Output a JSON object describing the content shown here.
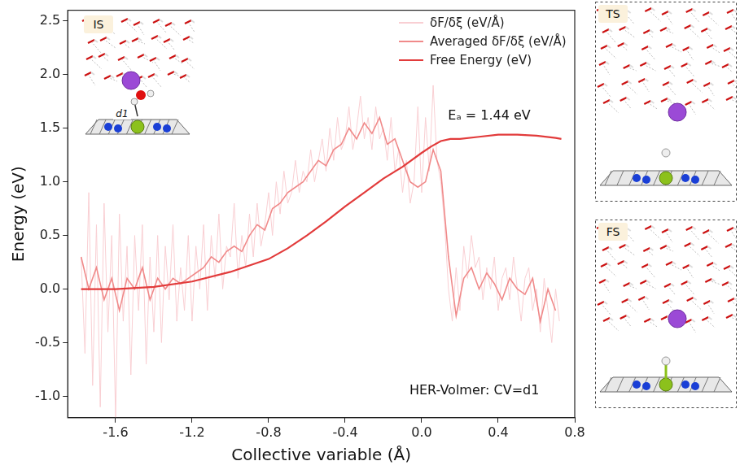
{
  "chart_data": {
    "type": "line",
    "x_label": "Collective variable (Å)",
    "y_label": "Energy (eV)",
    "xlim": [
      -1.85,
      0.8
    ],
    "xticks": [
      -1.6,
      -1.2,
      -0.8,
      -0.4,
      {
        "value": 0,
        "label": "0.0"
      },
      0.4,
      0.8
    ],
    "ylim": [
      -1.2,
      2.6
    ],
    "yticks": [
      {
        "value": -1,
        "label": "-1.0"
      },
      -0.5,
      {
        "value": 0,
        "label": "0.0"
      },
      0.5,
      {
        "value": 1,
        "label": "1.0"
      },
      1.5,
      {
        "value": 2,
        "label": "2.0"
      },
      2.5
    ],
    "grid": false,
    "legend": "upper right",
    "annotations": [
      "Eₐ = 1.44 eV",
      "HER-Volmer: CV=d1"
    ],
    "series": [
      {
        "name": "δF/δξ (eV/Å)",
        "color": "#f9cfd3",
        "x": [
          -1.78,
          -1.76,
          -1.74,
          -1.72,
          -1.7,
          -1.68,
          -1.66,
          -1.64,
          -1.62,
          -1.6,
          -1.58,
          -1.56,
          -1.54,
          -1.52,
          -1.5,
          -1.48,
          -1.46,
          -1.44,
          -1.42,
          -1.4,
          -1.38,
          -1.36,
          -1.34,
          -1.32,
          -1.3,
          -1.28,
          -1.26,
          -1.24,
          -1.22,
          -1.2,
          -1.18,
          -1.16,
          -1.14,
          -1.12,
          -1.1,
          -1.08,
          -1.06,
          -1.04,
          -1.02,
          -1.0,
          -0.98,
          -0.96,
          -0.94,
          -0.92,
          -0.9,
          -0.88,
          -0.86,
          -0.84,
          -0.82,
          -0.8,
          -0.78,
          -0.76,
          -0.74,
          -0.72,
          -0.7,
          -0.68,
          -0.66,
          -0.64,
          -0.62,
          -0.6,
          -0.58,
          -0.56,
          -0.54,
          -0.52,
          -0.5,
          -0.48,
          -0.46,
          -0.44,
          -0.42,
          -0.4,
          -0.38,
          -0.36,
          -0.34,
          -0.32,
          -0.3,
          -0.28,
          -0.26,
          -0.24,
          -0.22,
          -0.2,
          -0.18,
          -0.16,
          -0.14,
          -0.12,
          -0.1,
          -0.08,
          -0.06,
          -0.04,
          -0.02,
          0.0,
          0.02,
          0.04,
          0.06,
          0.08,
          0.1,
          0.12,
          0.14,
          0.16,
          0.18,
          0.2,
          0.22,
          0.24,
          0.26,
          0.28,
          0.3,
          0.32,
          0.34,
          0.36,
          0.38,
          0.4,
          0.42,
          0.44,
          0.46,
          0.48,
          0.5,
          0.52,
          0.54,
          0.56,
          0.58,
          0.6,
          0.62,
          0.64,
          0.66,
          0.68,
          0.7,
          0.72
        ],
        "values": [
          0.3,
          -0.6,
          0.9,
          -0.9,
          0.6,
          -1.1,
          0.8,
          -0.4,
          0.5,
          -1.2,
          0.7,
          -0.3,
          0.4,
          -0.8,
          0.5,
          -0.2,
          0.6,
          -0.7,
          0.3,
          -0.4,
          0.5,
          -0.5,
          0.4,
          -0.1,
          0.6,
          -0.3,
          0.2,
          -0.2,
          0.5,
          -0.3,
          0.4,
          0.0,
          0.6,
          -0.2,
          0.5,
          0.1,
          0.7,
          0.0,
          0.4,
          0.3,
          0.8,
          0.1,
          0.5,
          0.2,
          0.7,
          0.3,
          0.8,
          0.4,
          0.6,
          0.9,
          0.5,
          1.0,
          0.7,
          1.1,
          0.8,
          0.9,
          1.2,
          0.9,
          1.1,
          1.0,
          1.3,
          1.0,
          1.2,
          1.4,
          1.1,
          1.5,
          1.2,
          1.6,
          1.3,
          1.4,
          1.7,
          1.3,
          1.5,
          1.8,
          1.4,
          1.6,
          1.3,
          1.7,
          1.4,
          1.5,
          1.2,
          1.6,
          1.1,
          1.3,
          0.9,
          1.2,
          0.8,
          1.0,
          1.7,
          0.9,
          1.6,
          1.1,
          1.9,
          1.2,
          1.0,
          0.6,
          0.0,
          -0.3,
          0.2,
          -0.2,
          0.4,
          0.1,
          0.5,
          0.2,
          0.3,
          -0.1,
          0.2,
          0.0,
          0.3,
          -0.2,
          0.1,
          0.2,
          -0.1,
          0.3,
          0.0,
          -0.3,
          0.1,
          0.2,
          -0.2,
          0.0,
          -0.4,
          0.1,
          -0.2,
          -0.5,
          0.0,
          -0.3
        ]
      },
      {
        "name": "Averaged δF/δξ (eV/Å)",
        "color": "#f08a8a",
        "x": [
          -1.78,
          -1.74,
          -1.7,
          -1.66,
          -1.62,
          -1.58,
          -1.54,
          -1.5,
          -1.46,
          -1.42,
          -1.38,
          -1.34,
          -1.3,
          -1.26,
          -1.22,
          -1.18,
          -1.14,
          -1.1,
          -1.06,
          -1.02,
          -0.98,
          -0.94,
          -0.9,
          -0.86,
          -0.82,
          -0.78,
          -0.74,
          -0.7,
          -0.66,
          -0.62,
          -0.58,
          -0.54,
          -0.5,
          -0.46,
          -0.42,
          -0.38,
          -0.34,
          -0.3,
          -0.26,
          -0.22,
          -0.18,
          -0.14,
          -0.1,
          -0.06,
          -0.02,
          0.02,
          0.06,
          0.1,
          0.14,
          0.18,
          0.22,
          0.26,
          0.3,
          0.34,
          0.38,
          0.42,
          0.46,
          0.5,
          0.54,
          0.58,
          0.62,
          0.66,
          0.7
        ],
        "values": [
          0.3,
          0.0,
          0.2,
          -0.1,
          0.1,
          -0.2,
          0.1,
          0.0,
          0.2,
          -0.1,
          0.1,
          0.0,
          0.1,
          0.05,
          0.1,
          0.15,
          0.2,
          0.3,
          0.25,
          0.35,
          0.4,
          0.35,
          0.5,
          0.6,
          0.55,
          0.75,
          0.8,
          0.9,
          0.95,
          1.0,
          1.1,
          1.2,
          1.15,
          1.3,
          1.35,
          1.5,
          1.4,
          1.55,
          1.45,
          1.6,
          1.35,
          1.4,
          1.2,
          1.0,
          0.95,
          1.0,
          1.3,
          1.1,
          0.3,
          -0.25,
          0.1,
          0.2,
          0.0,
          0.15,
          0.05,
          -0.1,
          0.1,
          0.0,
          -0.05,
          0.1,
          -0.3,
          0.0,
          -0.2
        ]
      },
      {
        "name": "Free Energy (eV)",
        "color": "#e23b3b",
        "x": [
          -1.78,
          -1.6,
          -1.4,
          -1.2,
          -1.0,
          -0.8,
          -0.7,
          -0.6,
          -0.5,
          -0.4,
          -0.3,
          -0.2,
          -0.1,
          0.0,
          0.05,
          0.1,
          0.15,
          0.2,
          0.3,
          0.4,
          0.5,
          0.6,
          0.7,
          0.73
        ],
        "values": [
          0.0,
          0.0,
          0.02,
          0.07,
          0.16,
          0.28,
          0.38,
          0.5,
          0.63,
          0.77,
          0.9,
          1.03,
          1.14,
          1.27,
          1.33,
          1.38,
          1.4,
          1.4,
          1.42,
          1.44,
          1.44,
          1.43,
          1.41,
          1.4
        ]
      }
    ]
  },
  "insets": [
    {
      "label": "IS",
      "bond_label": "d1"
    },
    {
      "label": "TS"
    },
    {
      "label": "FS"
    }
  ]
}
